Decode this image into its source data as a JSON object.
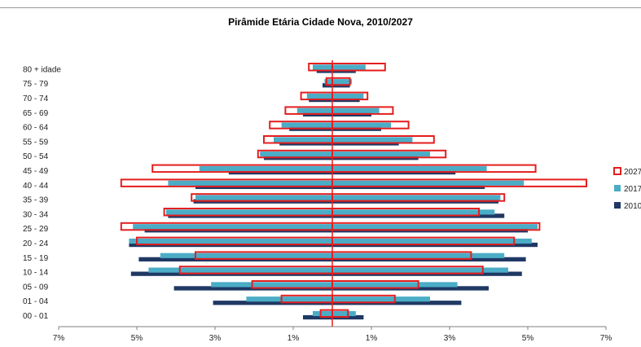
{
  "chart_data": {
    "type": "bar",
    "orientation": "horizontal",
    "layout": "population-pyramid",
    "title": "Pirâmide Etária Cidade Nova, 2010/2027",
    "categories": [
      "80 + idade",
      "75 - 79",
      "70 - 74",
      "65 - 69",
      "60 - 64",
      "55 - 59",
      "50 - 54",
      "45 - 49",
      "40 - 44",
      "35 - 39",
      "30 - 34",
      "25 - 29",
      "20 - 24",
      "15 - 19",
      "10 - 14",
      "05 - 09",
      "01 - 04",
      "00 - 01"
    ],
    "x_ticks": [
      {
        "label": "7%",
        "value": -7
      },
      {
        "label": "5%",
        "value": -5
      },
      {
        "label": "3%",
        "value": -3
      },
      {
        "label": "1%",
        "value": -1
      },
      {
        "label": "1%",
        "value": 1
      },
      {
        "label": "3%",
        "value": 3
      },
      {
        "label": "5%",
        "value": 5
      },
      {
        "label": "7%",
        "value": 7
      }
    ],
    "xlim": [
      -7,
      7
    ],
    "legend_position": "right",
    "series": [
      {
        "name": "2027",
        "style": "outline",
        "color": "#e41e1e",
        "left": [
          0.6,
          0.15,
          0.8,
          1.2,
          1.6,
          1.75,
          1.9,
          4.6,
          5.4,
          3.6,
          4.3,
          5.4,
          5.0,
          3.5,
          3.9,
          2.05,
          1.3,
          0.3
        ],
        "right": [
          1.35,
          0.45,
          0.9,
          1.55,
          1.95,
          2.6,
          2.9,
          5.2,
          6.5,
          4.4,
          3.75,
          5.3,
          4.65,
          3.55,
          3.85,
          2.2,
          1.6,
          0.4
        ]
      },
      {
        "name": "2017",
        "style": "filled",
        "color": "#4bacc6",
        "left": [
          0.5,
          0.2,
          0.65,
          0.9,
          1.3,
          1.5,
          1.85,
          3.4,
          4.2,
          3.5,
          4.25,
          5.1,
          5.2,
          4.4,
          4.7,
          3.1,
          2.2,
          0.5
        ],
        "right": [
          0.85,
          0.5,
          0.8,
          1.2,
          1.5,
          2.05,
          2.5,
          3.95,
          4.9,
          4.3,
          4.15,
          5.25,
          5.1,
          4.4,
          4.5,
          3.2,
          2.5,
          0.6
        ]
      },
      {
        "name": "2010",
        "style": "filled",
        "color": "#1f3864",
        "left": [
          0.4,
          0.25,
          0.6,
          0.75,
          1.1,
          1.35,
          1.75,
          2.65,
          3.5,
          3.55,
          4.2,
          4.8,
          5.2,
          4.95,
          5.15,
          4.05,
          3.05,
          0.75
        ],
        "right": [
          0.6,
          0.45,
          0.7,
          1.0,
          1.25,
          1.7,
          2.2,
          3.15,
          3.9,
          4.25,
          4.4,
          5.0,
          5.25,
          4.95,
          4.85,
          4.0,
          3.3,
          0.8
        ]
      }
    ]
  }
}
